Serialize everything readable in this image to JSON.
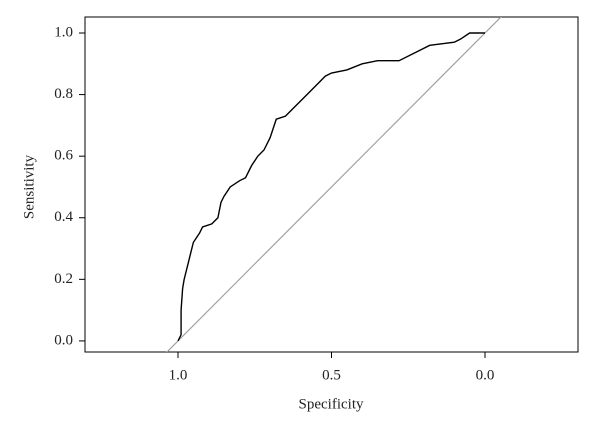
{
  "chart_data": {
    "type": "line",
    "x_label": "Specificity",
    "y_label": "Sensitivity",
    "x": [
      1.0,
      0.99,
      0.99,
      0.985,
      0.98,
      0.97,
      0.96,
      0.95,
      0.93,
      0.92,
      0.89,
      0.87,
      0.86,
      0.85,
      0.83,
      0.8,
      0.78,
      0.76,
      0.74,
      0.72,
      0.7,
      0.68,
      0.65,
      0.62,
      0.58,
      0.55,
      0.52,
      0.5,
      0.45,
      0.4,
      0.35,
      0.28,
      0.22,
      0.18,
      0.1,
      0.08,
      0.05,
      0.0
    ],
    "series": [
      {
        "color": "#000000",
        "values": [
          0.0,
          0.02,
          0.1,
          0.17,
          0.2,
          0.24,
          0.28,
          0.32,
          0.35,
          0.37,
          0.38,
          0.4,
          0.45,
          0.47,
          0.5,
          0.52,
          0.53,
          0.57,
          0.6,
          0.62,
          0.66,
          0.72,
          0.73,
          0.76,
          0.8,
          0.83,
          0.86,
          0.87,
          0.88,
          0.9,
          0.91,
          0.91,
          0.94,
          0.96,
          0.97,
          0.98,
          1.0,
          1.0
        ]
      }
    ],
    "reference_line_color": "#a0a0a0",
    "xlim": [
      1.303,
      -0.303
    ],
    "xticks": [
      {
        "value": 1,
        "label": "1.0"
      },
      0.5,
      {
        "value": 0,
        "label": "0.0"
      }
    ],
    "ylim": [
      -0.036,
      1.052
    ],
    "yticks": [
      {
        "value": 0,
        "label": "0.0"
      },
      0.2,
      0.4,
      0.6,
      0.8,
      {
        "value": 1,
        "label": "1.0"
      }
    ]
  }
}
